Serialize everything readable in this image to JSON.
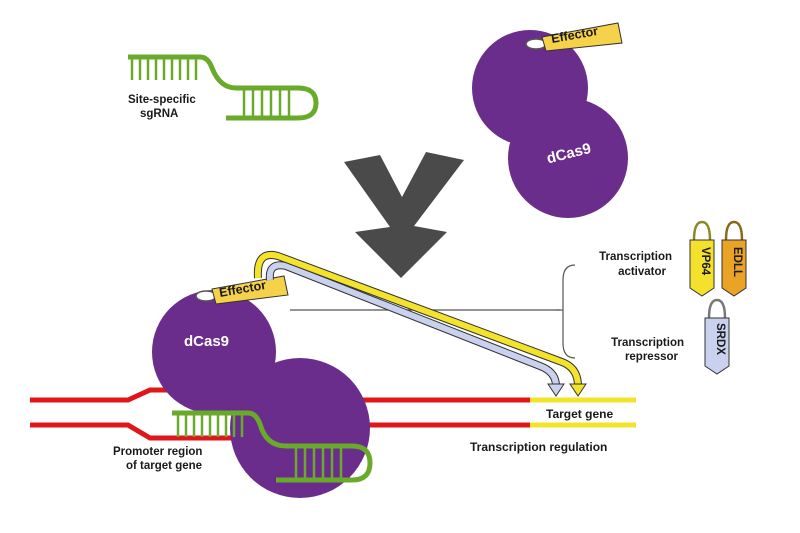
{
  "labels": {
    "sgrna_line1": "Site-specific",
    "sgrna_line2": "sgRNA",
    "effector_top": "Effector",
    "dcas9_top": "dCas9",
    "effector_bottom": "Effector",
    "dcas9_bottom": "dCas9",
    "activator_line1": "Transcription",
    "activator_line2": "activator",
    "repressor_line1": "Transcription",
    "repressor_line2": "repressor",
    "vp64": "VP64",
    "edll": "EDLL",
    "srdx": "SRDX",
    "target_gene": "Target gene",
    "transcription_regulation": "Transcription  regulation",
    "promoter_line1": "Promoter region",
    "promoter_line2": "of target gene"
  },
  "colors": {
    "protein_purple": "#6b2d8c",
    "rna_green": "#6aaa2a",
    "dna_red": "#e0161b",
    "gene_yellow": "#f3e32a",
    "effector_yellow": "#f6d24a",
    "arrow_gray": "#4a4a4a",
    "tag_lavender": "#c9d1ee",
    "tag_orange": "#eaa324",
    "tag_yellow": "#f4e12c"
  }
}
